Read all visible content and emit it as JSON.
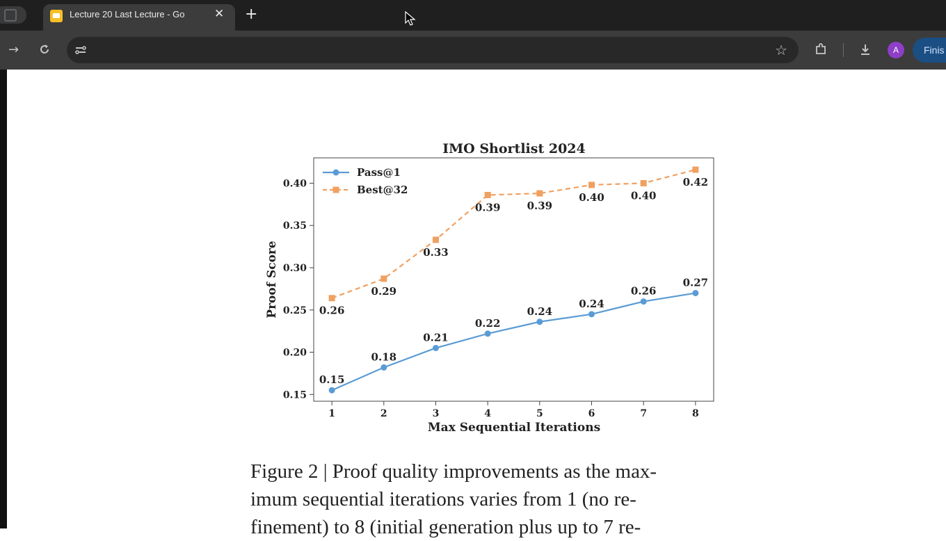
{
  "browser": {
    "tab_title": "Lecture 20 Last Lecture - Go",
    "tab_close": "✕",
    "new_tab": "+",
    "profile_initial": "A",
    "finish_label": "Finis"
  },
  "chart_data": {
    "type": "line",
    "title": "IMO Shortlist 2024",
    "xlabel": "Max Sequential Iterations",
    "ylabel": "Proof Score",
    "x": [
      1,
      2,
      3,
      4,
      5,
      6,
      7,
      8
    ],
    "xlim": [
      0.65,
      8.35
    ],
    "ylim": [
      0.142,
      0.43
    ],
    "yticks": [
      0.15,
      0.2,
      0.25,
      0.3,
      0.35,
      0.4
    ],
    "ytick_labels": [
      "0.15",
      "0.20",
      "0.25",
      "0.30",
      "0.35",
      "0.40"
    ],
    "xtick_labels": [
      "1",
      "2",
      "3",
      "4",
      "5",
      "6",
      "7",
      "8"
    ],
    "grid": false,
    "legend": "top-left",
    "series": [
      {
        "name": "Pass@1",
        "color": "#5b9bd5",
        "style": "solid",
        "marker": "circle",
        "values": [
          0.155,
          0.182,
          0.205,
          0.222,
          0.236,
          0.245,
          0.26,
          0.27
        ],
        "labels": [
          "0.15",
          "0.18",
          "0.21",
          "0.22",
          "0.24",
          "0.24",
          "0.26",
          "0.27"
        ],
        "label_pos": "above"
      },
      {
        "name": "Best@32",
        "color": "#f0a060",
        "style": "dashed",
        "marker": "square",
        "values": [
          0.264,
          0.287,
          0.333,
          0.386,
          0.388,
          0.398,
          0.4,
          0.416
        ],
        "labels": [
          "0.26",
          "0.29",
          "0.33",
          "0.39",
          "0.39",
          "0.40",
          "0.40",
          "0.42"
        ],
        "label_pos": "below"
      }
    ]
  },
  "caption": {
    "lines": [
      "Figure 2 | Proof quality improvements as the max-",
      "imum sequential iterations varies from 1 (no re-",
      "finement) to 8 (initial generation plus up to 7 re-"
    ]
  }
}
